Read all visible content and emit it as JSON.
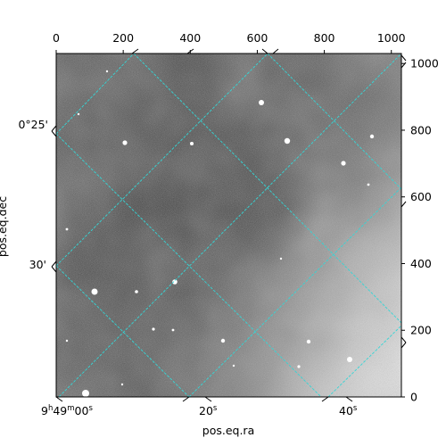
{
  "figure": {
    "xlabel": "pos.eq.ra",
    "ylabel": "pos.eq.dec"
  },
  "pixel_axes": {
    "top_ticks": [
      "0",
      "200",
      "400",
      "600",
      "800",
      "1000"
    ],
    "right_ticks": [
      "0",
      "200",
      "400",
      "600",
      "800",
      "1000"
    ],
    "range": [
      0,
      1030
    ]
  },
  "world_axes": {
    "ra_ticks": [
      {
        "h": "9",
        "m": "49",
        "s": "00",
        "value_s": 0
      },
      {
        "h": "",
        "m": "",
        "s": "20",
        "value_s": 20
      },
      {
        "h": "",
        "m": "",
        "s": "40",
        "value_s": 40
      }
    ],
    "dec_ticks": [
      {
        "label": "0°25'",
        "value_arcmin": 25
      },
      {
        "label": "30'",
        "value_arcmin": 30
      }
    ]
  },
  "colors": {
    "grid": "#34d6d6",
    "frame": "#000000",
    "image_dark": "#3a3a3a",
    "image_light": "#d8d8d8"
  }
}
